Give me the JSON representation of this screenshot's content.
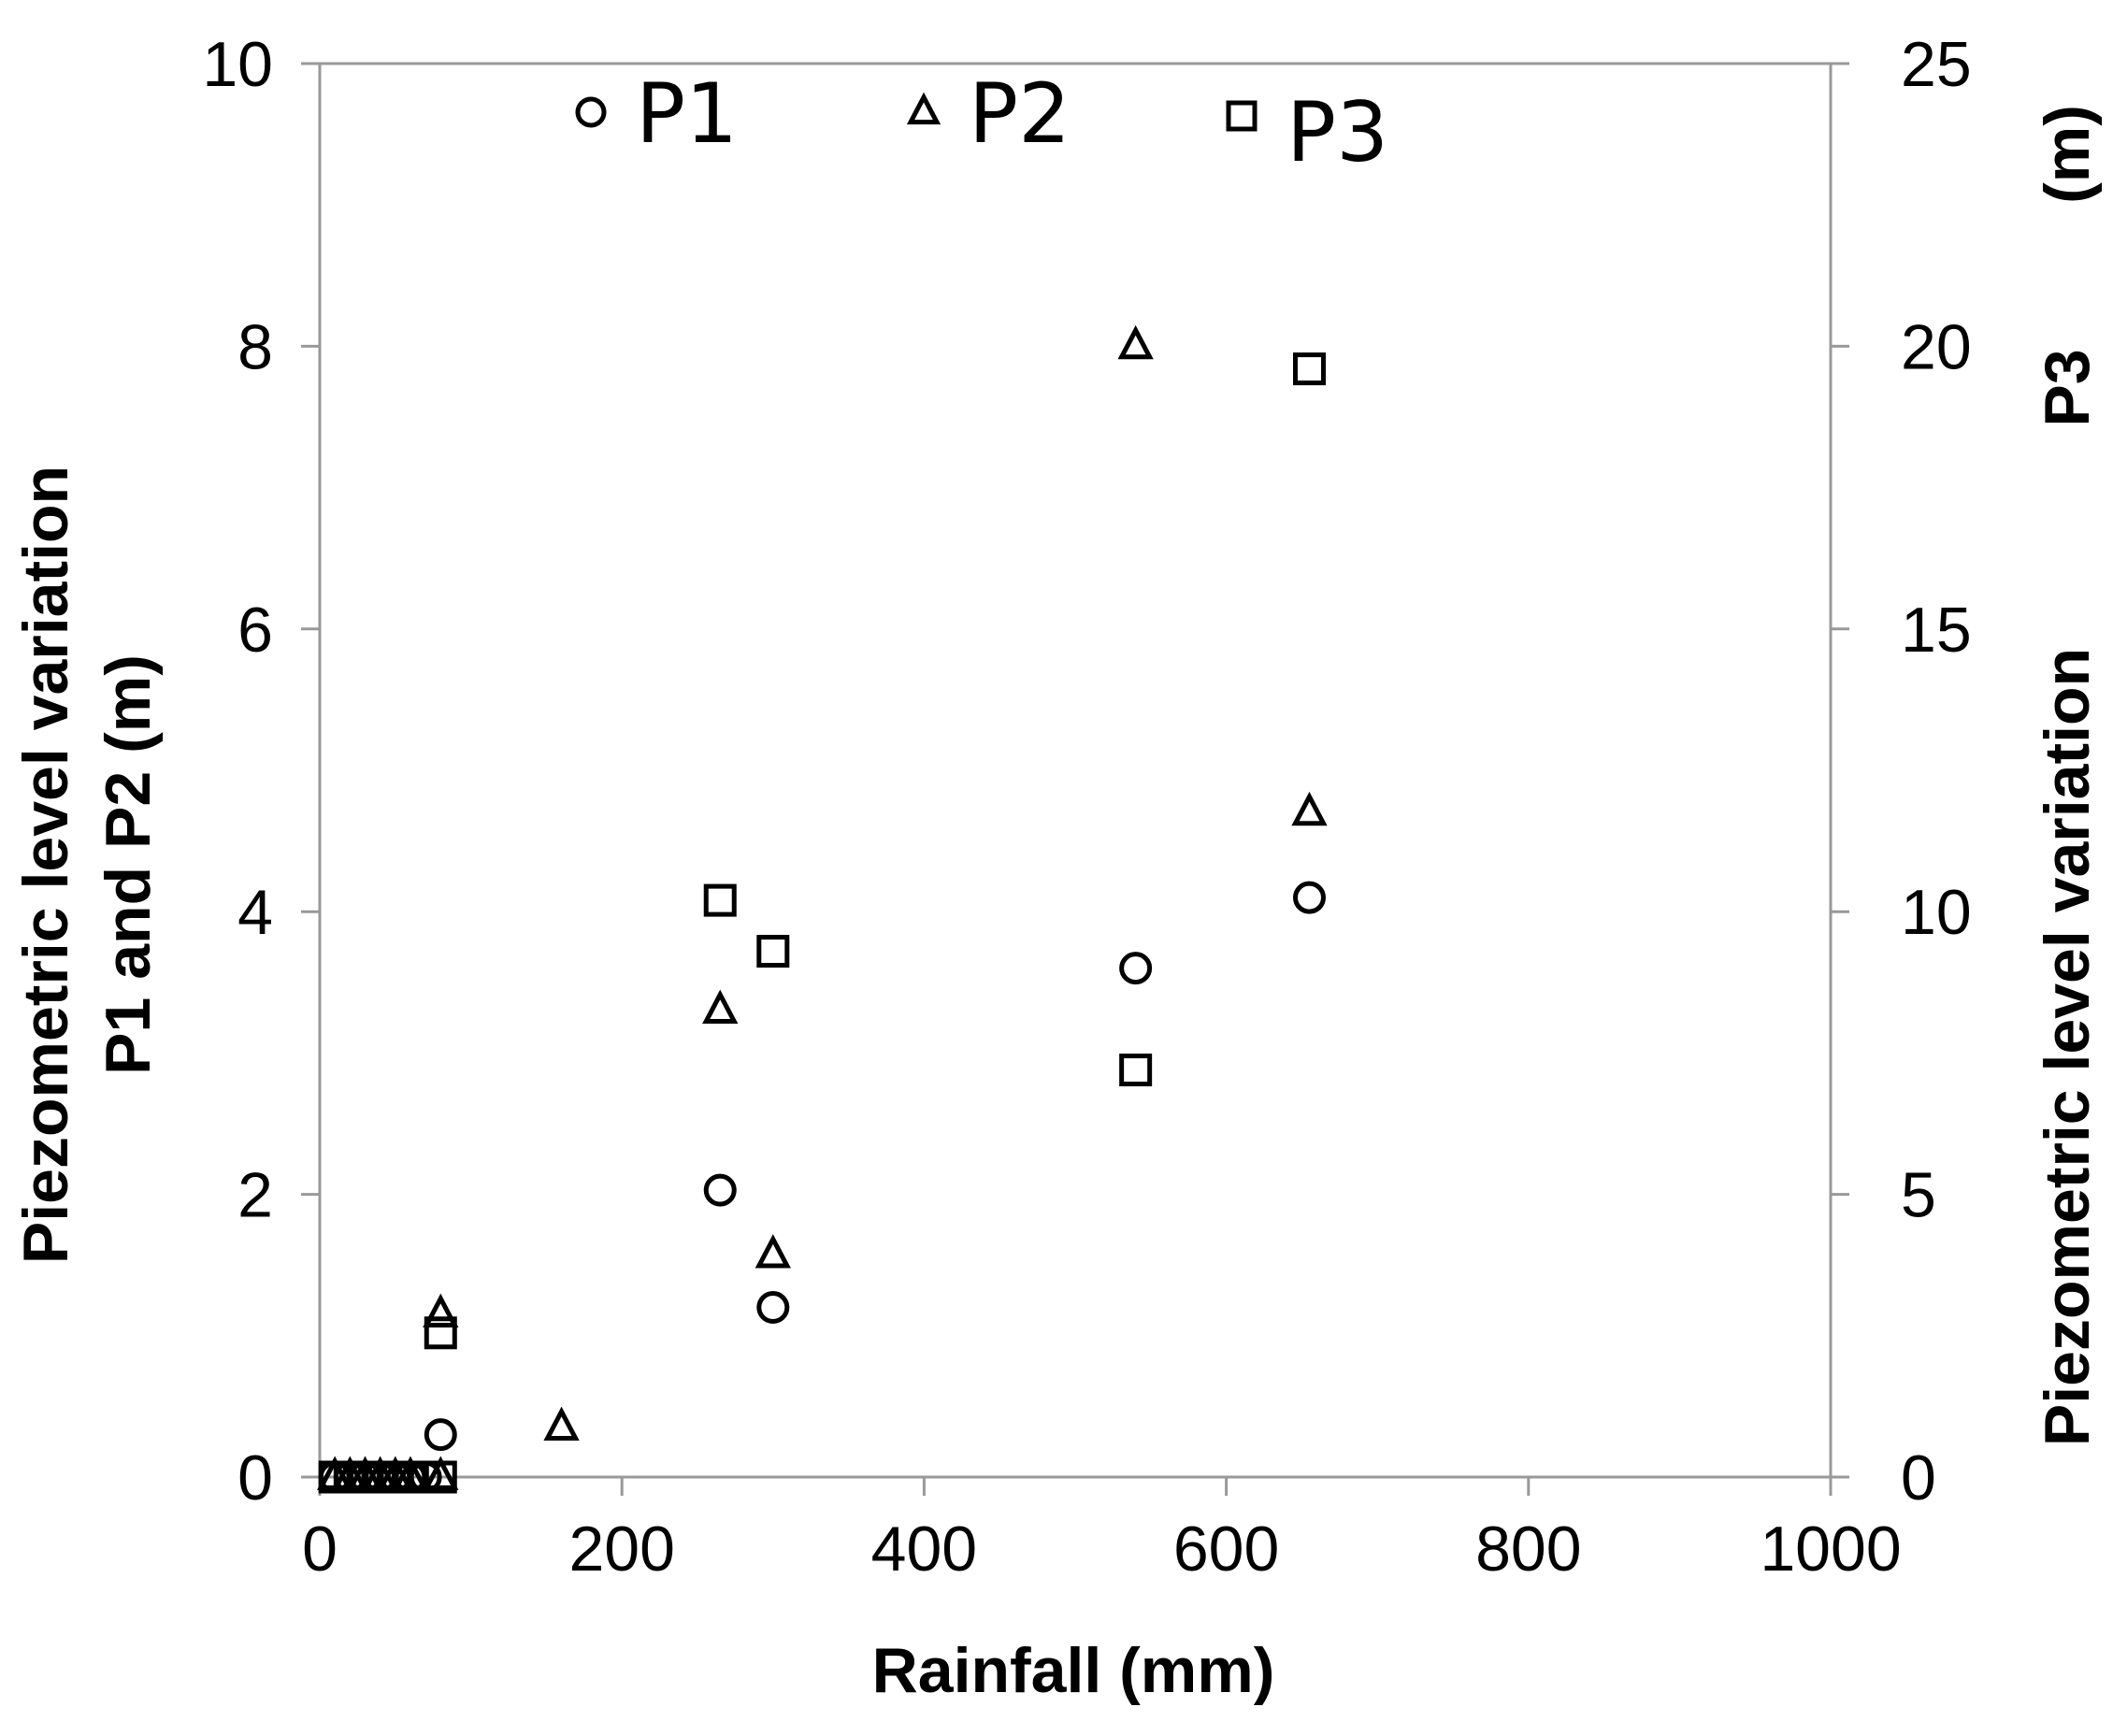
{
  "chart_data": {
    "type": "scatter",
    "title": "",
    "xlabel": "Rainfall (mm)",
    "ylabel_left": [
      "Piezometric level variation",
      "P1 and P2 (m)"
    ],
    "ylabel_right": [
      "Piezometric level variation",
      "P3",
      "(m)"
    ],
    "xlim": [
      0,
      1000
    ],
    "ylim_left": [
      0,
      10
    ],
    "ylim_right": [
      0,
      25
    ],
    "x_ticks": [
      "0",
      "200",
      "400",
      "600",
      "800",
      "1000"
    ],
    "x_tick_values": [
      0,
      200,
      400,
      600,
      800,
      1000
    ],
    "y_left_ticks": [
      "0",
      "2",
      "4",
      "6",
      "8",
      "10"
    ],
    "y_left_tick_values": [
      0,
      2,
      4,
      6,
      8,
      10
    ],
    "y_right_ticks": [
      "0",
      "5",
      "10",
      "15",
      "20",
      "25"
    ],
    "y_right_tick_values": [
      0,
      5,
      10,
      15,
      20,
      25
    ],
    "grid": false,
    "legend_position": "top",
    "series": [
      {
        "name": "P1",
        "marker": "circle",
        "axis": "left",
        "points": [
          [
            10,
            0
          ],
          [
            20,
            0
          ],
          [
            30,
            0
          ],
          [
            40,
            0
          ],
          [
            50,
            0
          ],
          [
            60,
            0
          ],
          [
            70,
            0
          ],
          [
            80,
            0.3
          ],
          [
            265,
            2.03
          ],
          [
            300,
            1.2
          ],
          [
            540,
            3.6
          ],
          [
            655,
            4.1
          ]
        ]
      },
      {
        "name": "P2",
        "marker": "triangle",
        "axis": "left",
        "points": [
          [
            10,
            0
          ],
          [
            20,
            0
          ],
          [
            30,
            0
          ],
          [
            40,
            0
          ],
          [
            50,
            0
          ],
          [
            60,
            0
          ],
          [
            80,
            0
          ],
          [
            80,
            1.15
          ],
          [
            160,
            0.35
          ],
          [
            265,
            3.3
          ],
          [
            300,
            1.57
          ],
          [
            540,
            8.0
          ],
          [
            655,
            4.7
          ]
        ]
      },
      {
        "name": "P3",
        "marker": "square",
        "axis": "right",
        "points": [
          [
            10,
            0
          ],
          [
            20,
            0
          ],
          [
            30,
            0
          ],
          [
            40,
            0
          ],
          [
            50,
            0
          ],
          [
            60,
            0
          ],
          [
            80,
            0
          ],
          [
            80,
            2.55
          ],
          [
            265,
            10.2
          ],
          [
            300,
            9.3
          ],
          [
            540,
            7.2
          ],
          [
            655,
            19.6
          ]
        ]
      }
    ],
    "colors": {
      "marker_stroke": "#000000",
      "axis": "#999999",
      "background": "#ffffff"
    }
  }
}
